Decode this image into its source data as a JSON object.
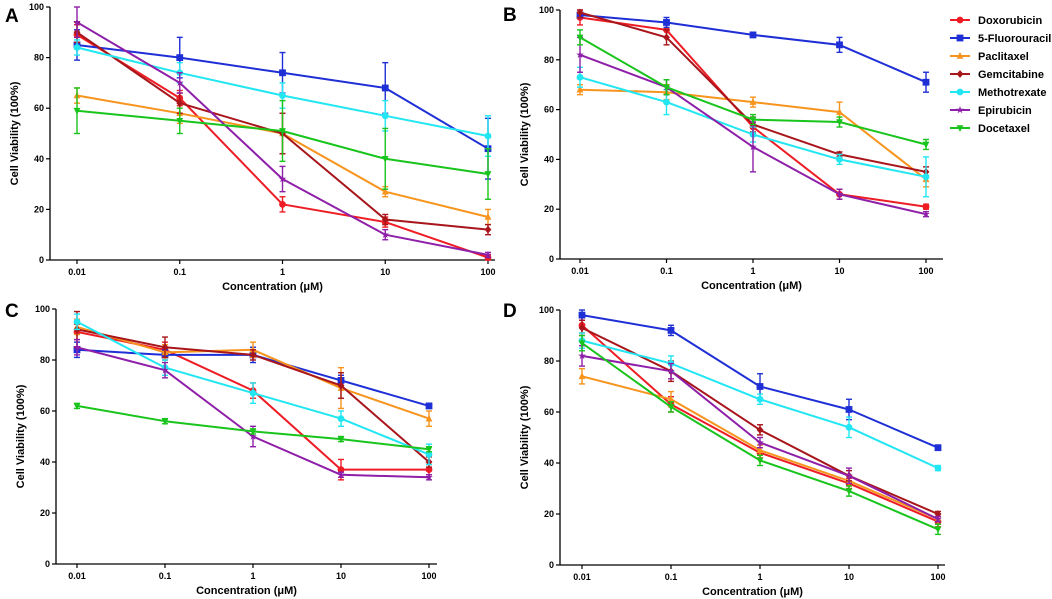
{
  "legend": [
    {
      "name": "Doxorubicin",
      "color": "#ee1c24",
      "marker": "circle"
    },
    {
      "name": "5-Fluorouracil",
      "color": "#1f2fd6",
      "marker": "square"
    },
    {
      "name": "Paclitaxel",
      "color": "#f7941d",
      "marker": "triangle-up"
    },
    {
      "name": "Gemcitabine",
      "color": "#a8151b",
      "marker": "diamond"
    },
    {
      "name": "Methotrexate",
      "color": "#22e6f2",
      "marker": "circle"
    },
    {
      "name": "Epirubicin",
      "color": "#8e1fa8",
      "marker": "star"
    },
    {
      "name": "Docetaxel",
      "color": "#19c41c",
      "marker": "triangle-down"
    }
  ],
  "chart_data": [
    {
      "panel": "A",
      "type": "line",
      "x": [
        0.01,
        0.1,
        1,
        10,
        100
      ],
      "x_ticks": [
        "0.01",
        "0.1",
        "1",
        "10",
        "100"
      ],
      "xlabel": "Concentration (μM)",
      "ylabel": "Cell Viability (100%)",
      "ylim": [
        0,
        100
      ],
      "y_ticks": [
        "0",
        "20",
        "40",
        "60",
        "80",
        "100"
      ],
      "series": [
        {
          "name": "Doxorubicin",
          "values": [
            89,
            64,
            22,
            15,
            1
          ],
          "errors": [
            4,
            3,
            3,
            2,
            1
          ]
        },
        {
          "name": "5-Fluorouracil",
          "values": [
            85,
            80,
            74,
            68,
            44
          ],
          "errors": [
            6,
            8,
            8,
            10,
            12
          ]
        },
        {
          "name": "Paclitaxel",
          "values": [
            65,
            58,
            50,
            27,
            17
          ],
          "errors": [
            3,
            4,
            8,
            2,
            3
          ]
        },
        {
          "name": "Gemcitabine",
          "values": [
            90,
            62,
            50,
            16,
            12
          ],
          "errors": [
            4,
            4,
            8,
            2,
            2
          ]
        },
        {
          "name": "Methotrexate",
          "values": [
            84,
            74,
            65,
            57,
            49
          ],
          "errors": [
            3,
            4,
            5,
            6,
            8
          ]
        },
        {
          "name": "Epirubicin",
          "values": [
            94,
            70,
            32,
            10,
            2
          ],
          "errors": [
            6,
            4,
            5,
            2,
            1
          ]
        },
        {
          "name": "Docetaxel",
          "values": [
            59,
            55,
            51,
            40,
            34
          ],
          "errors": [
            9,
            5,
            12,
            12,
            10
          ]
        }
      ]
    },
    {
      "panel": "B",
      "type": "line",
      "x": [
        0.01,
        0.1,
        1,
        10,
        100
      ],
      "x_ticks": [
        "0.01",
        "0.1",
        "1",
        "10",
        "100"
      ],
      "xlabel": "Concentration (μM)",
      "ylabel": "Cell Viability (100%)",
      "ylim": [
        0,
        100
      ],
      "y_ticks": [
        "0",
        "20",
        "40",
        "60",
        "80",
        "100"
      ],
      "series": [
        {
          "name": "Doxorubicin",
          "values": [
            97,
            92,
            53,
            26,
            21
          ],
          "errors": [
            3,
            3,
            2,
            2,
            1
          ]
        },
        {
          "name": "5-Fluorouracil",
          "values": [
            98,
            95,
            90,
            86,
            71
          ],
          "errors": [
            1,
            2,
            1,
            3,
            4
          ]
        },
        {
          "name": "Paclitaxel",
          "values": [
            68,
            67,
            63,
            59,
            32
          ],
          "errors": [
            2,
            3,
            2,
            4,
            3
          ]
        },
        {
          "name": "Gemcitabine",
          "values": [
            99,
            89,
            54,
            42,
            35
          ],
          "errors": [
            2,
            3,
            3,
            1,
            2
          ]
        },
        {
          "name": "Methotrexate",
          "values": [
            73,
            63,
            50,
            40,
            33
          ],
          "errors": [
            4,
            5,
            3,
            2,
            8
          ]
        },
        {
          "name": "Epirubicin",
          "values": [
            82,
            69,
            45,
            26,
            18
          ],
          "errors": [
            7,
            3,
            10,
            2,
            1
          ]
        },
        {
          "name": "Docetaxel",
          "values": [
            89,
            69,
            56,
            55,
            46
          ],
          "errors": [
            3,
            3,
            2,
            2,
            2
          ]
        }
      ]
    },
    {
      "panel": "C",
      "type": "line",
      "x": [
        0.01,
        0.1,
        1,
        10,
        100
      ],
      "x_ticks": [
        "0.01",
        "0.1",
        "1",
        "10",
        "100"
      ],
      "xlabel": "Concentration (μM)",
      "ylabel": "Cell Viability (100%)",
      "ylim": [
        0,
        100
      ],
      "y_ticks": [
        "0",
        "20",
        "40",
        "60",
        "80",
        "100"
      ],
      "series": [
        {
          "name": "Doxorubicin",
          "values": [
            91,
            84,
            68,
            37,
            37
          ],
          "errors": [
            3,
            3,
            3,
            4,
            2
          ]
        },
        {
          "name": "5-Fluorouracil",
          "values": [
            84,
            82,
            82,
            72,
            62
          ],
          "errors": [
            3,
            2,
            3,
            2,
            1
          ]
        },
        {
          "name": "Paclitaxel",
          "values": [
            93,
            83,
            84,
            69,
            57
          ],
          "errors": [
            3,
            3,
            3,
            8,
            3
          ]
        },
        {
          "name": "Gemcitabine",
          "values": [
            92,
            85,
            82,
            70,
            40
          ],
          "errors": [
            7,
            4,
            2,
            5,
            2
          ]
        },
        {
          "name": "Methotrexate",
          "values": [
            95,
            77,
            67,
            57,
            43
          ],
          "errors": [
            3,
            3,
            4,
            3,
            4
          ]
        },
        {
          "name": "Epirubicin",
          "values": [
            85,
            76,
            50,
            35,
            34
          ],
          "errors": [
            3,
            3,
            4,
            1,
            1
          ]
        },
        {
          "name": "Docetaxel",
          "values": [
            62,
            56,
            52,
            49,
            45
          ],
          "errors": [
            1,
            1,
            1,
            1,
            1
          ]
        }
      ]
    },
    {
      "panel": "D",
      "type": "line",
      "x": [
        0.01,
        0.1,
        1,
        10,
        100
      ],
      "x_ticks": [
        "0.01",
        "0.1",
        "1",
        "10",
        "100"
      ],
      "xlabel": "Concentration (μM)",
      "ylabel": "Cell Viability (100%)",
      "ylim": [
        0,
        100
      ],
      "y_ticks": [
        "0",
        "20",
        "40",
        "60",
        "80",
        "100"
      ],
      "series": [
        {
          "name": "Doxorubicin",
          "values": [
            94,
            63,
            44,
            32,
            17
          ],
          "errors": [
            3,
            3,
            2,
            2,
            2
          ]
        },
        {
          "name": "5-Fluorouracil",
          "values": [
            98,
            92,
            70,
            61,
            46
          ],
          "errors": [
            2,
            2,
            5,
            4,
            1
          ]
        },
        {
          "name": "Paclitaxel",
          "values": [
            74,
            65,
            45,
            33,
            18
          ],
          "errors": [
            3,
            3,
            2,
            2,
            2
          ]
        },
        {
          "name": "Gemcitabine",
          "values": [
            93,
            76,
            53,
            35,
            20
          ],
          "errors": [
            3,
            4,
            2,
            2,
            1
          ]
        },
        {
          "name": "Methotrexate",
          "values": [
            88,
            79,
            65,
            54,
            38
          ],
          "errors": [
            3,
            3,
            2,
            4,
            1
          ]
        },
        {
          "name": "Epirubicin",
          "values": [
            82,
            76,
            48,
            35,
            18
          ],
          "errors": [
            4,
            3,
            2,
            3,
            1
          ]
        },
        {
          "name": "Docetaxel",
          "values": [
            87,
            62,
            41,
            29,
            14
          ],
          "errors": [
            3,
            2,
            2,
            2,
            2
          ]
        }
      ]
    }
  ]
}
